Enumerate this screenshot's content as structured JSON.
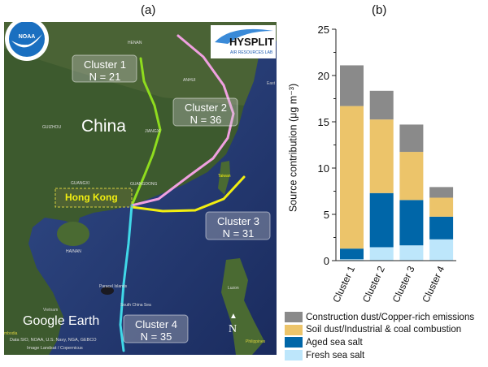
{
  "panel_a": {
    "label": "(a)",
    "country_label": "China",
    "hong_kong_label": "Hong Kong",
    "place_labels": [
      "HENAN",
      "ANHUI",
      "GUIZHOU",
      "JIANGXI",
      "GUANGXI",
      "GUANGDONG",
      "HAINAN",
      "Taiwan",
      "Luzon",
      "Paracel Islands",
      "South China Sea",
      "Vietnam",
      "Philippines",
      "East",
      "mbodia"
    ],
    "clusters": [
      {
        "name": "Cluster 1",
        "n": "N = 21",
        "color": "#8fdc1e"
      },
      {
        "name": "Cluster 2",
        "n": "N = 36",
        "color": "#f0a0e0"
      },
      {
        "name": "Cluster 3",
        "n": "N = 31",
        "color": "#f2ee10"
      },
      {
        "name": "Cluster 4",
        "n": "N = 35",
        "color": "#40d8e8"
      }
    ],
    "logos": {
      "noaa": "NOAA",
      "hysplit": "HYSPLIT",
      "hysplit_sub": "AIR RESOURCES LAB",
      "google_earth": "Google Earth"
    },
    "attribution_1": "Data SIO, NOAA, U.S. Navy, NGA, GEBCO",
    "attribution_2": "Image Landsat / Copernicus",
    "north_label": "N"
  },
  "chart_data": {
    "type": "bar",
    "stacked": true,
    "panel_label": "(b)",
    "categories": [
      "Cluster 1",
      "Cluster 2",
      "Cluster 3",
      "Cluster 4"
    ],
    "ylabel": "Source contribution (μg m⁻³)",
    "ylim": [
      0,
      25
    ],
    "yticks": [
      0,
      5,
      10,
      15,
      20,
      25
    ],
    "grid": false,
    "legend_placement": "bottom",
    "series": [
      {
        "name": "Fresh sea salt",
        "color": "#bde6fb",
        "values": [
          0.15,
          1.45,
          1.65,
          2.3
        ]
      },
      {
        "name": "Aged sea salt",
        "color": "#0066a8",
        "values": [
          1.15,
          5.85,
          4.9,
          2.45
        ]
      },
      {
        "name": "Soil dust/Industrial & coal combustion",
        "color": "#ecc46a",
        "values": [
          15.4,
          7.95,
          5.2,
          2.05
        ]
      },
      {
        "name": "Construction dust/Copper-rich emissions",
        "color": "#8a8a8a",
        "values": [
          4.4,
          3.1,
          2.95,
          1.15
        ]
      }
    ]
  }
}
